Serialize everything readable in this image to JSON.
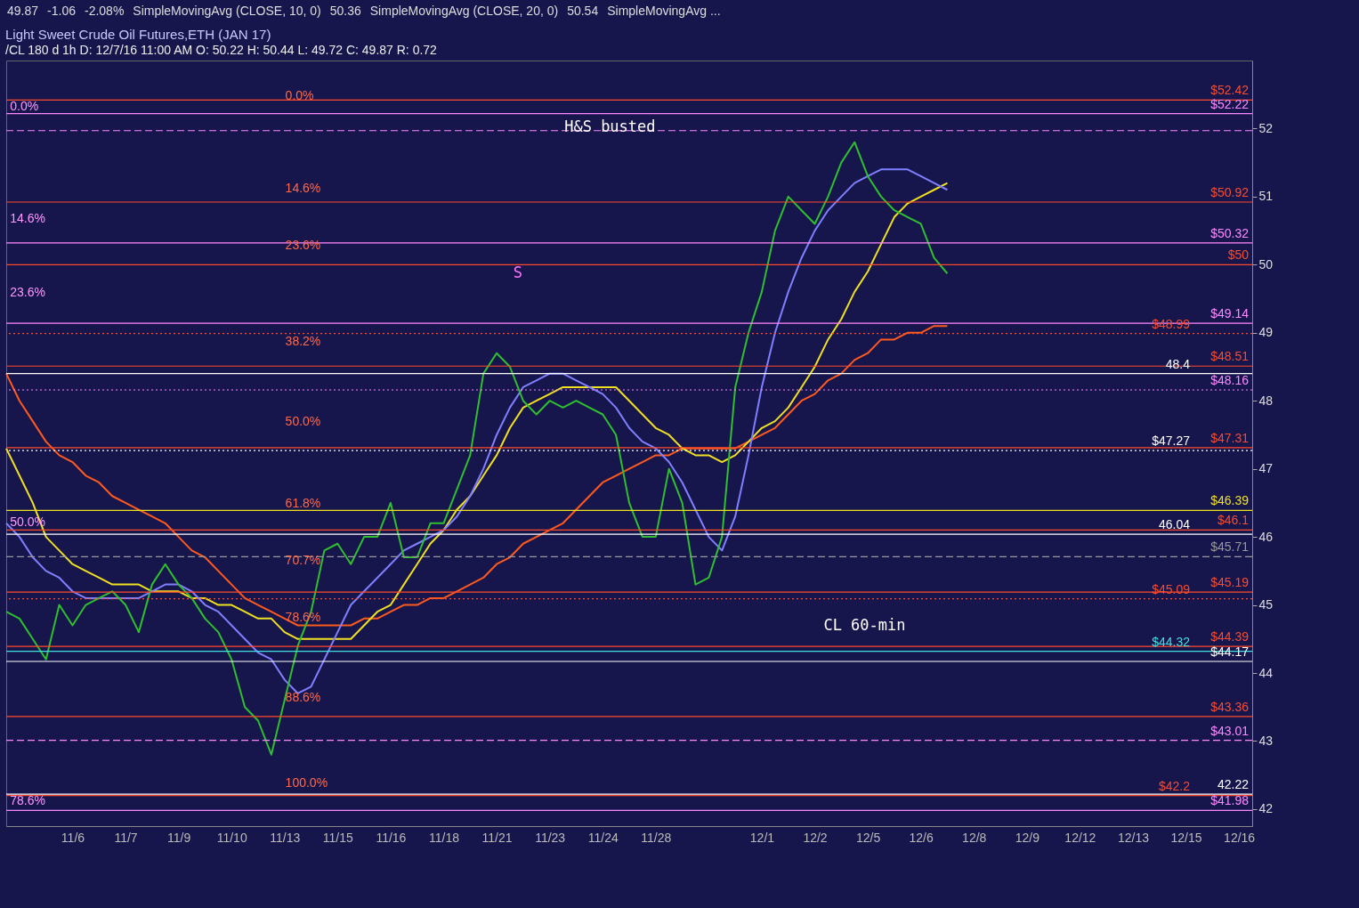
{
  "chart_data": {
    "type": "line",
    "title": "Light Sweet Crude Oil Futures,ETH (JAN 17)",
    "subtitle": "/CL 180 d 1h   D: 12/7/16 11:00 AM   O: 50.22   H: 50.44   L: 49.72   C: 49.87   R: 0.72",
    "categories": [
      null,
      null,
      null,
      null,
      null,
      "11/6",
      null,
      null,
      null,
      "11/7",
      null,
      null,
      null,
      "11/9",
      null,
      null,
      null,
      "11/10",
      null,
      null,
      null,
      "11/13",
      null,
      null,
      null,
      "11/15",
      null,
      null,
      null,
      "11/16",
      null,
      null,
      null,
      "11/18",
      null,
      null,
      null,
      "11/21",
      null,
      null,
      null,
      "11/23",
      null,
      null,
      null,
      "11/24",
      null,
      null,
      null,
      "11/28",
      null,
      null,
      null,
      null,
      null,
      null,
      null,
      "12/1",
      null,
      null,
      null,
      "12/2",
      null,
      null,
      null,
      "12/5",
      null,
      null,
      null,
      "12/6",
      null,
      null,
      null,
      "12/8",
      null,
      null,
      null,
      "12/9",
      null,
      null,
      null,
      "12/12",
      null,
      null,
      null,
      "12/13",
      null,
      null,
      null,
      "12/15",
      null,
      null,
      null,
      "12/16",
      null
    ],
    "series": [
      {
        "color": "#ff5a1e",
        "values": [
          48.4,
          48.0,
          47.7,
          47.4,
          47.2,
          47.1,
          46.9,
          46.8,
          46.6,
          46.5,
          46.4,
          46.3,
          46.2,
          46.0,
          45.8,
          45.7,
          45.5,
          45.3,
          45.1,
          45.0,
          44.9,
          44.8,
          44.7,
          44.7,
          44.7,
          44.7,
          44.7,
          44.8,
          44.8,
          44.9,
          45.0,
          45.0,
          45.1,
          45.1,
          45.2,
          45.3,
          45.4,
          45.6,
          45.7,
          45.9,
          46.0,
          46.1,
          46.2,
          46.4,
          46.6,
          46.8,
          46.9,
          47.0,
          47.1,
          47.2,
          47.2,
          47.3,
          47.3,
          47.3,
          47.3,
          47.3,
          47.4,
          47.5,
          47.6,
          47.8,
          48.0,
          48.1,
          48.3,
          48.4,
          48.6,
          48.7,
          48.9,
          48.9,
          49.0,
          49.0,
          49.1,
          49.1,
          null,
          null,
          null,
          null,
          null,
          null,
          null,
          null,
          null,
          null,
          null,
          null,
          null,
          null,
          null,
          null,
          null,
          null,
          null,
          null,
          null,
          null,
          null
        ]
      },
      {
        "color": "#f0e020",
        "values": [
          47.3,
          46.9,
          46.5,
          46.0,
          45.8,
          45.6,
          45.5,
          45.4,
          45.3,
          45.3,
          45.3,
          45.2,
          45.2,
          45.2,
          45.1,
          45.1,
          45.0,
          45.0,
          44.9,
          44.8,
          44.8,
          44.6,
          44.5,
          44.5,
          44.5,
          44.5,
          44.5,
          44.7,
          44.9,
          45.0,
          45.3,
          45.6,
          45.9,
          46.1,
          46.4,
          46.6,
          46.9,
          47.2,
          47.6,
          47.9,
          48.0,
          48.1,
          48.2,
          48.2,
          48.2,
          48.2,
          48.2,
          48.0,
          47.8,
          47.6,
          47.5,
          47.3,
          47.2,
          47.2,
          47.1,
          47.2,
          47.4,
          47.6,
          47.7,
          47.9,
          48.2,
          48.5,
          48.9,
          49.2,
          49.6,
          49.9,
          50.3,
          50.7,
          50.9,
          51.0,
          51.1,
          51.2,
          null,
          null,
          null,
          null,
          null,
          null,
          null,
          null,
          null,
          null,
          null,
          null,
          null,
          null,
          null,
          null,
          null,
          null,
          null,
          null,
          null,
          null,
          null
        ]
      },
      {
        "color": "#8080ff",
        "values": [
          46.2,
          46.0,
          45.7,
          45.5,
          45.4,
          45.2,
          45.1,
          45.1,
          45.1,
          45.1,
          45.1,
          45.2,
          45.3,
          45.3,
          45.2,
          45.0,
          44.9,
          44.7,
          44.5,
          44.3,
          44.2,
          43.9,
          43.7,
          43.8,
          44.2,
          44.6,
          45.0,
          45.2,
          45.4,
          45.6,
          45.8,
          45.9,
          46.0,
          46.1,
          46.3,
          46.6,
          47.0,
          47.5,
          47.9,
          48.2,
          48.3,
          48.4,
          48.4,
          48.3,
          48.2,
          48.1,
          47.9,
          47.6,
          47.4,
          47.3,
          47.1,
          46.8,
          46.4,
          46.0,
          45.8,
          46.3,
          47.2,
          48.2,
          49.0,
          49.6,
          50.1,
          50.5,
          50.8,
          51.0,
          51.2,
          51.3,
          51.4,
          51.4,
          51.4,
          51.3,
          51.2,
          51.1,
          null,
          null,
          null,
          null,
          null,
          null,
          null,
          null,
          null,
          null,
          null,
          null,
          null,
          null,
          null,
          null,
          null,
          null,
          null,
          null,
          null,
          null,
          null
        ]
      },
      {
        "color": "#2fbf2f",
        "values": [
          44.9,
          44.8,
          44.5,
          44.2,
          45.0,
          44.7,
          45.0,
          45.1,
          45.2,
          45.0,
          44.6,
          45.3,
          45.6,
          45.3,
          45.1,
          44.8,
          44.6,
          44.2,
          43.5,
          43.3,
          42.8,
          43.6,
          44.4,
          44.9,
          45.8,
          45.9,
          45.6,
          46.0,
          46.0,
          46.5,
          45.7,
          45.7,
          46.2,
          46.2,
          46.7,
          47.2,
          48.4,
          48.7,
          48.5,
          48.0,
          47.8,
          48.0,
          47.9,
          48.0,
          47.9,
          47.8,
          47.5,
          46.5,
          46.0,
          46.0,
          47.0,
          46.5,
          45.3,
          45.4,
          46.0,
          48.2,
          49.0,
          49.6,
          50.5,
          51.0,
          50.8,
          50.6,
          51.0,
          51.5,
          51.8,
          51.3,
          51.0,
          50.8,
          50.7,
          50.6,
          50.1,
          49.87,
          null,
          null,
          null,
          null,
          null,
          null,
          null,
          null,
          null,
          null,
          null,
          null,
          null,
          null,
          null,
          null,
          null,
          null,
          null,
          null,
          null,
          null,
          null
        ]
      }
    ],
    "ylim": [
      41.75,
      53.0
    ],
    "yticks": [
      42,
      43,
      44,
      45,
      46,
      47,
      48,
      49,
      50,
      51,
      52
    ],
    "ref_lines": [
      {
        "axis": "y",
        "value": 52.42,
        "label": "$52.42",
        "color": "#ff4a2a"
      },
      {
        "axis": "y",
        "value": 52.22,
        "label": "$52.22",
        "color": "#ff88ff"
      },
      {
        "axis": "y",
        "value": 51.97,
        "color": "#ff88ff",
        "line_style": "dashed"
      },
      {
        "axis": "y",
        "value": 50.92,
        "label": "$50.92",
        "color": "#ff4a2a"
      },
      {
        "axis": "y",
        "value": 50.32,
        "label": "$50.32",
        "color": "#ff88ff"
      },
      {
        "axis": "y",
        "value": 50,
        "label": "$50",
        "color": "#ff4a2a"
      },
      {
        "axis": "y",
        "value": 49.14,
        "label": "$49.14",
        "color": "#ff88ff"
      },
      {
        "axis": "y",
        "value": 48.99,
        "label": "$48.99",
        "color": "#ff4a2a",
        "line_style": "dotted"
      },
      {
        "axis": "y",
        "value": 48.51,
        "label": "$48.51",
        "color": "#ff4a2a"
      },
      {
        "axis": "y",
        "value": 48.4,
        "label": "48.4",
        "color": "#ffffff"
      },
      {
        "axis": "y",
        "value": 48.16,
        "label": "$48.16",
        "color": "#ff88ff",
        "line_style": "dotted"
      },
      {
        "axis": "y",
        "value": 47.31,
        "label": "$47.31",
        "color": "#ff4a2a"
      },
      {
        "axis": "y",
        "value": 47.27,
        "label": "$47.27",
        "color": "#ffffff",
        "line_style": "dotted"
      },
      {
        "axis": "y",
        "value": 46.39,
        "label": "$46.39",
        "color": "#f0e020"
      },
      {
        "axis": "y",
        "value": 46.1,
        "label": "$46.1",
        "color": "#ff4a2a"
      },
      {
        "axis": "y",
        "value": 46.04,
        "label": "46.04",
        "color": "#ffffff"
      },
      {
        "axis": "y",
        "value": 45.71,
        "label": "$45.71",
        "color": "#999999",
        "line_style": "dashed"
      },
      {
        "axis": "y",
        "value": 45.19,
        "label": "$45.19",
        "color": "#ff4a2a"
      },
      {
        "axis": "y",
        "value": 45.09,
        "label": "$45.09",
        "color": "#ff4a2a",
        "line_style": "dotted"
      },
      {
        "axis": "y",
        "value": 44.39,
        "label": "$44.39",
        "color": "#ff4a2a"
      },
      {
        "axis": "y",
        "value": 44.32,
        "label": "$44.32",
        "color": "#40e0e0"
      },
      {
        "axis": "y",
        "value": 44.17,
        "label": "$44.17",
        "color": "#ffffff"
      },
      {
        "axis": "y",
        "value": 43.36,
        "label": "$43.36",
        "color": "#ff4a2a"
      },
      {
        "axis": "y",
        "value": 43.01,
        "label": "$43.01",
        "color": "#ff88ff",
        "line_style": "dashed"
      },
      {
        "axis": "y",
        "value": 42.22,
        "label": "42.22",
        "color": "#ffffff"
      },
      {
        "axis": "y",
        "value": 42.2,
        "label": "$42.2",
        "color": "#ff4a2a"
      },
      {
        "axis": "y",
        "value": 41.98,
        "label": "$41.98",
        "color": "#ff88ff"
      }
    ],
    "annotations": [
      "49.87",
      "-1.06",
      "-2.08%",
      "SimpleMovingAvg (CLOSE, 10, 0)",
      "50.36",
      "SimpleMovingAvg (CLOSE, 20, 0)",
      "50.54",
      "SimpleMovingAvg ...",
      "H&S busted",
      "S",
      "CL 60-min",
      "0.0%",
      "14.6%",
      "23.6%",
      "38.2%",
      "50.0%",
      "61.8%",
      "70.7%",
      "78.6%",
      "88.6%",
      "100.0%",
      "0.0%",
      "14.6%",
      "23.6%",
      "50.0%",
      "78.6%"
    ]
  }
}
